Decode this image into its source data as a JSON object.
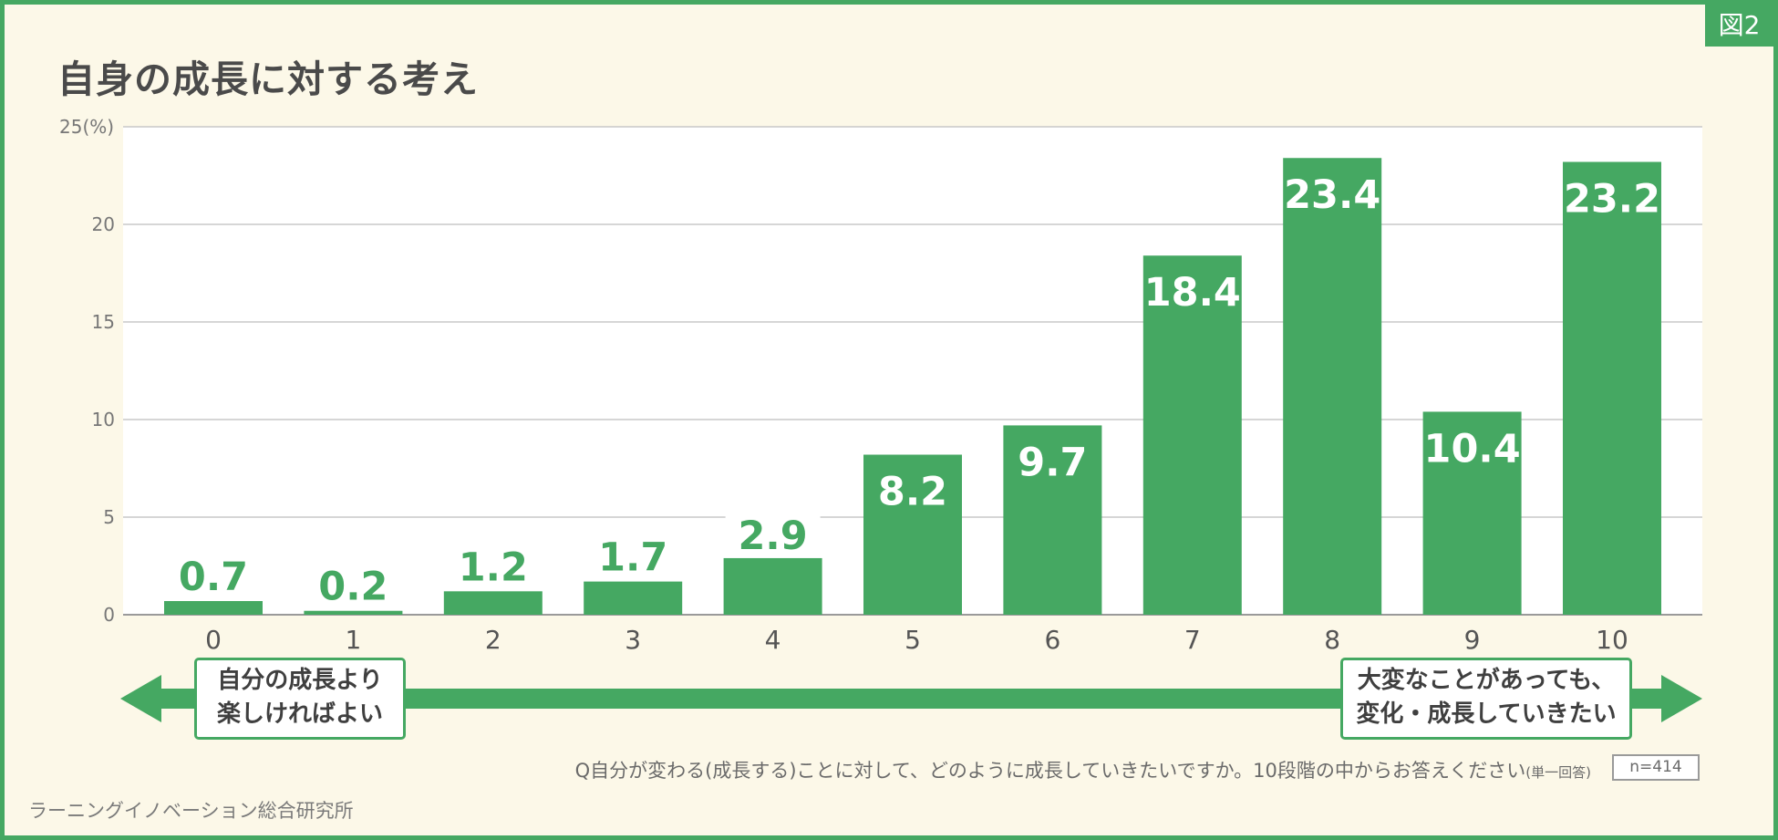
{
  "figure_badge": "図2",
  "chart_data": {
    "type": "bar",
    "title": "自身の成長に対する考え",
    "y_unit": "(%)",
    "ylim": [
      0,
      25
    ],
    "yticks": [
      "0",
      "5",
      "10",
      "15",
      "20",
      "25"
    ],
    "categories": [
      "0",
      "1",
      "2",
      "3",
      "4",
      "5",
      "6",
      "7",
      "8",
      "9",
      "10"
    ],
    "values": [
      0.7,
      0.2,
      1.2,
      1.7,
      2.9,
      8.2,
      9.7,
      18.4,
      23.4,
      10.4,
      23.2
    ],
    "value_labels": [
      "0.7",
      "0.2",
      "1.2",
      "1.7",
      "2.9",
      "8.2",
      "9.7",
      "18.4",
      "23.4",
      "10.4",
      "23.2"
    ],
    "grid": true,
    "bar_color": "#45a862"
  },
  "scale": {
    "left_label_line1": "自分の成長より",
    "left_label_line2": "楽しければよい",
    "right_label_line1": "大変なことがあっても、",
    "right_label_line2": "変化・成長していきたい"
  },
  "question": "Q自分が変わる(成長する)ことに対して、どのように成長していきたいですか。10段階の中からお答えください",
  "question_note": "(単一回答)",
  "sample_size": "n=414",
  "source": "ラーニングイノベーション総合研究所",
  "colors": {
    "accent": "#45a862",
    "background": "#fcf8e8",
    "plot_background": "#ffffff",
    "title_text": "#4a4a4a"
  }
}
